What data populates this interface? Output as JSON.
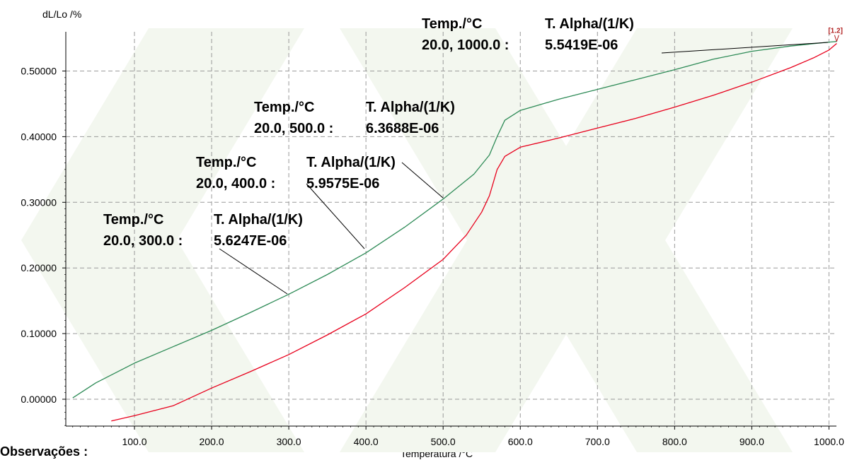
{
  "chart_data": {
    "type": "line",
    "xlabel": "Temperatura /°C",
    "ylabel": "dL/Lo /%",
    "xlim": [
      10,
      1030
    ],
    "ylim": [
      -0.04,
      0.56
    ],
    "x_ticks": [
      "100.0",
      "200.0",
      "300.0",
      "400.0",
      "500.0",
      "600.0",
      "700.0",
      "800.0",
      "900.0",
      "1000.0"
    ],
    "y_ticks": [
      "0.00000",
      "0.10000",
      "0.20000",
      "0.30000",
      "0.40000",
      "0.50000"
    ],
    "grid": true,
    "series": [
      {
        "color": "#2e8b57",
        "x": [
          20,
          50,
          100,
          150,
          200,
          250,
          300,
          350,
          400,
          450,
          500,
          540,
          560,
          570,
          580,
          600,
          650,
          700,
          750,
          800,
          850,
          900,
          950,
          1000,
          1010
        ],
        "y": [
          0.002,
          0.025,
          0.055,
          0.08,
          0.105,
          0.132,
          0.16,
          0.19,
          0.223,
          0.262,
          0.305,
          0.343,
          0.372,
          0.4,
          0.425,
          0.44,
          0.457,
          0.472,
          0.487,
          0.502,
          0.518,
          0.53,
          0.538,
          0.544,
          0.545
        ]
      },
      {
        "color": "#e8001c",
        "x": [
          70,
          100,
          150,
          200,
          250,
          300,
          350,
          400,
          450,
          500,
          530,
          550,
          560,
          565,
          570,
          580,
          600,
          650,
          700,
          750,
          800,
          850,
          900,
          950,
          980,
          1000,
          1010
        ],
        "y": [
          -0.033,
          -0.025,
          -0.01,
          0.017,
          0.042,
          0.068,
          0.098,
          0.13,
          0.17,
          0.213,
          0.25,
          0.285,
          0.31,
          0.33,
          0.35,
          0.37,
          0.384,
          0.398,
          0.413,
          0.428,
          0.445,
          0.463,
          0.483,
          0.505,
          0.52,
          0.532,
          0.542
        ]
      }
    ],
    "annotations": [
      {
        "title_a": "Temp./°C",
        "title_b": "T. Alpha/(1/K)",
        "range": "20.0, 300.0 :",
        "value": "5.6247E-06"
      },
      {
        "title_a": "Temp./°C",
        "title_b": "T. Alpha/(1/K)",
        "range": "20.0, 400.0 :",
        "value": "5.9575E-06"
      },
      {
        "title_a": "Temp./°C",
        "title_b": "T. Alpha/(1/K)",
        "range": "20.0, 500.0 :",
        "value": "6.3688E-06"
      },
      {
        "title_a": "Temp./°C",
        "title_b": "T. Alpha/(1/K)",
        "range": "20.0, 1000.0 :",
        "value": "5.5419E-06"
      }
    ],
    "marker_label": "[1.2]"
  },
  "footer": {
    "observacoes": "Observações :"
  }
}
